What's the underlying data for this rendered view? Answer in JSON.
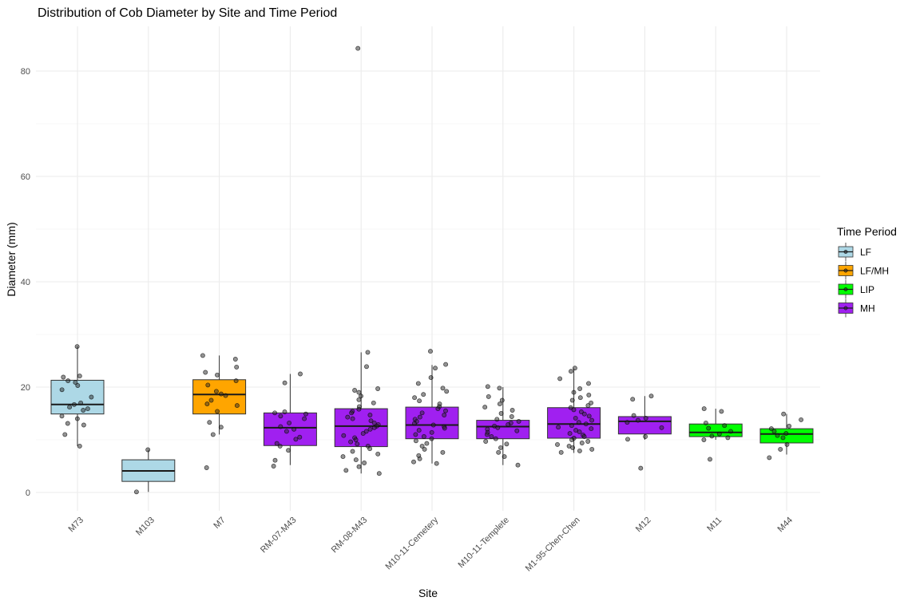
{
  "chart_data": {
    "type": "boxplot",
    "title": "Distribution of Cob Diameter by Site and Time Period",
    "xlabel": "Site",
    "ylabel": "Diameter (mm)",
    "ylim": [
      -4,
      88
    ],
    "yticks": [
      0,
      20,
      40,
      60,
      80
    ],
    "grid": true,
    "legend": {
      "title": "Time Period",
      "position": "right",
      "entries": [
        {
          "label": "LF",
          "color": "#add8e6"
        },
        {
          "label": "LF/MH",
          "color": "#ffa500"
        },
        {
          "label": "LIP",
          "color": "#00ff00"
        },
        {
          "label": "MH",
          "color": "#a020f0"
        }
      ]
    },
    "categories": [
      {
        "site": "M73",
        "period": "LF",
        "q1": 14.9,
        "median": 16.7,
        "q3": 21.3,
        "whisker_low": 8.8,
        "whisker_high": 27.7,
        "points": [
          27.7,
          22.1,
          21.9,
          21.2,
          20.9,
          20.3,
          19.5,
          18.1,
          17.0,
          16.7,
          16.2,
          15.9,
          15.6,
          14.5,
          14.0,
          13.1,
          12.8,
          11.0,
          8.8
        ]
      },
      {
        "site": "M103",
        "period": "LF",
        "q1": 2.1,
        "median": 4.1,
        "q3": 6.2,
        "whisker_low": 0.1,
        "whisker_high": 8.1,
        "points": [
          8.1,
          0.1
        ]
      },
      {
        "site": "M7",
        "period": "LF/MH",
        "q1": 14.9,
        "median": 18.6,
        "q3": 21.4,
        "whisker_low": 11.0,
        "whisker_high": 26.0,
        "points": [
          26.0,
          25.3,
          23.8,
          22.8,
          22.3,
          21.2,
          20.4,
          19.2,
          18.7,
          18.4,
          17.5,
          16.8,
          16.5,
          15.4,
          13.3,
          12.4,
          11.0,
          4.7
        ]
      },
      {
        "site": "RM-07-M43",
        "period": "MH",
        "q1": 8.9,
        "median": 12.3,
        "q3": 15.1,
        "whisker_low": 5.2,
        "whisker_high": 22.5,
        "points": [
          22.5,
          20.8,
          15.3,
          15.1,
          14.9,
          14.5,
          14.0,
          13.2,
          12.5,
          12.0,
          11.6,
          10.5,
          10.1,
          9.3,
          8.8,
          8.0,
          6.1,
          5.0
        ]
      },
      {
        "site": "RM-08-M43",
        "period": "MH",
        "q1": 8.7,
        "median": 12.6,
        "q3": 15.9,
        "whisker_low": 3.6,
        "whisker_high": 26.6,
        "points": [
          84.3,
          26.6,
          23.9,
          19.7,
          19.4,
          19.0,
          18.3,
          17.6,
          17.0,
          16.3,
          15.8,
          15.4,
          15.1,
          14.7,
          14.3,
          14.0,
          13.6,
          13.2,
          12.9,
          12.6,
          12.3,
          12.0,
          11.6,
          11.2,
          10.8,
          10.4,
          10.0,
          9.6,
          9.2,
          8.8,
          8.3,
          7.8,
          7.3,
          6.8,
          6.2,
          5.6,
          4.9,
          4.2,
          3.6
        ]
      },
      {
        "site": "M10-11-Cemetery",
        "period": "MH",
        "q1": 10.2,
        "median": 12.8,
        "q3": 16.2,
        "whisker_low": 5.5,
        "whisker_high": 24.2,
        "points": [
          26.8,
          24.3,
          23.6,
          21.8,
          20.7,
          19.8,
          19.2,
          18.6,
          18.0,
          17.4,
          16.8,
          16.3,
          15.9,
          15.5,
          15.1,
          14.7,
          14.3,
          13.9,
          13.5,
          13.1,
          12.8,
          12.5,
          12.2,
          11.8,
          11.4,
          11.0,
          10.6,
          10.2,
          9.8,
          9.3,
          8.8,
          8.2,
          7.6,
          7.0,
          6.4,
          5.8,
          5.5
        ]
      },
      {
        "site": "M10-11-Templete",
        "period": "MH",
        "q1": 10.2,
        "median": 12.5,
        "q3": 13.7,
        "whisker_low": 5.2,
        "whisker_high": 20.0,
        "points": [
          20.1,
          19.8,
          18.2,
          17.5,
          16.8,
          16.2,
          15.6,
          15.0,
          14.4,
          13.9,
          13.5,
          13.2,
          12.9,
          12.6,
          12.3,
          12.0,
          11.7,
          11.4,
          11.0,
          10.6,
          10.2,
          9.7,
          9.2,
          8.5,
          7.6,
          6.8,
          5.2
        ]
      },
      {
        "site": "M1-95-Chen-Chen",
        "period": "MH",
        "q1": 10.3,
        "median": 13.0,
        "q3": 16.1,
        "whisker_low": 7.5,
        "whisker_high": 23.5,
        "points": [
          23.6,
          23.0,
          21.6,
          20.7,
          19.7,
          19.0,
          18.5,
          18.0,
          17.5,
          17.0,
          16.5,
          16.1,
          15.7,
          15.3,
          14.9,
          14.5,
          14.1,
          13.7,
          13.3,
          13.0,
          12.7,
          12.4,
          12.1,
          11.8,
          11.5,
          11.2,
          10.9,
          10.6,
          10.3,
          10.0,
          9.7,
          9.4,
          9.1,
          8.8,
          8.5,
          8.2,
          7.9,
          7.6
        ]
      },
      {
        "site": "M12",
        "period": "MH",
        "q1": 11.1,
        "median": 13.5,
        "q3": 14.4,
        "whisker_low": 10.0,
        "whisker_high": 18.3,
        "points": [
          18.3,
          17.7,
          14.6,
          14.1,
          13.7,
          13.3,
          12.3,
          10.6,
          10.1,
          4.6
        ]
      },
      {
        "site": "M11",
        "period": "LIP",
        "q1": 10.6,
        "median": 11.4,
        "q3": 13.0,
        "whisker_low": 10.0,
        "whisker_high": 15.9,
        "points": [
          15.9,
          15.4,
          13.2,
          12.7,
          12.2,
          11.6,
          11.1,
          10.7,
          10.4,
          10.0,
          6.3
        ]
      },
      {
        "site": "M44",
        "period": "LIP",
        "q1": 9.4,
        "median": 11.1,
        "q3": 12.1,
        "whisker_low": 7.2,
        "whisker_high": 14.9,
        "points": [
          14.9,
          13.8,
          12.6,
          12.1,
          11.6,
          11.2,
          10.8,
          10.4,
          9.1,
          8.2,
          6.6
        ]
      }
    ]
  }
}
